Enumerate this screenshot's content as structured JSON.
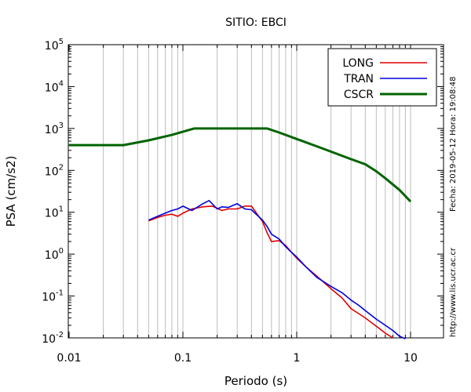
{
  "chart_data": {
    "type": "line",
    "title": "SITIO: EBCI",
    "xlabel": "Periodo (s)",
    "ylabel": "PSA (cm/s2)",
    "xscale": "log",
    "yscale": "log",
    "xlim": [
      0.01,
      20
    ],
    "ylim": [
      0.01,
      100000
    ],
    "x_tick_labels": [
      "0.01",
      "0.1",
      "1",
      "10"
    ],
    "y_tick_labels": [
      {
        "base": "10",
        "exp": "-2"
      },
      {
        "base": "10",
        "exp": "-1"
      },
      {
        "base": "10",
        "exp": "0"
      },
      {
        "base": "10",
        "exp": "1"
      },
      {
        "base": "10",
        "exp": "2"
      },
      {
        "base": "10",
        "exp": "3"
      },
      {
        "base": "10",
        "exp": "4"
      },
      {
        "base": "10",
        "exp": "5"
      }
    ],
    "grid": "vertical-minor",
    "legend_position": "top-right",
    "series": [
      {
        "name": "LONG",
        "color": "#e00000",
        "x": [
          0.05,
          0.06,
          0.07,
          0.08,
          0.09,
          0.1,
          0.12,
          0.15,
          0.18,
          0.2,
          0.22,
          0.25,
          0.3,
          0.35,
          0.4,
          0.45,
          0.5,
          0.55,
          0.6,
          0.7,
          0.8,
          0.9,
          1.0,
          1.2,
          1.5,
          2.0,
          2.5,
          3.0,
          3.5,
          4.0,
          5.0,
          6.0,
          7.0
        ],
        "values": [
          6.2,
          7.5,
          8.5,
          9.0,
          8.0,
          9.5,
          12,
          13.5,
          14,
          12.5,
          11,
          12,
          12,
          14,
          14,
          9,
          6,
          3.2,
          2.0,
          2.1,
          1.6,
          1.1,
          0.8,
          0.5,
          0.3,
          0.15,
          0.09,
          0.05,
          0.038,
          0.03,
          0.019,
          0.013,
          0.01
        ]
      },
      {
        "name": "TRAN",
        "color": "#0000e0",
        "x": [
          0.05,
          0.06,
          0.07,
          0.08,
          0.09,
          0.1,
          0.12,
          0.15,
          0.17,
          0.2,
          0.22,
          0.25,
          0.3,
          0.35,
          0.4,
          0.45,
          0.5,
          0.55,
          0.6,
          0.7,
          0.8,
          0.9,
          1.0,
          1.2,
          1.5,
          2.0,
          2.5,
          3.0,
          3.5,
          4.0,
          5.0,
          6.0,
          7.0,
          8.0,
          9.0
        ],
        "values": [
          6.5,
          8,
          9.5,
          11,
          12,
          14,
          11,
          16,
          19,
          12,
          13.5,
          13,
          16,
          12,
          11.5,
          8.5,
          6.5,
          4.5,
          3,
          2.3,
          1.5,
          1.1,
          0.85,
          0.5,
          0.28,
          0.17,
          0.12,
          0.08,
          0.06,
          0.045,
          0.028,
          0.02,
          0.015,
          0.011,
          0.0095
        ]
      },
      {
        "name": "CSCR",
        "color": "#006400",
        "x": [
          0.01,
          0.03,
          0.05,
          0.08,
          0.125,
          0.2,
          0.3,
          0.4,
          0.55,
          0.7,
          1.0,
          1.5,
          2.0,
          3.0,
          4.0,
          5.0,
          6.0,
          8.0,
          10.0
        ],
        "values": [
          400,
          400,
          520,
          700,
          1000,
          1000,
          1000,
          1000,
          1000,
          800,
          560,
          375,
          280,
          185,
          140,
          95,
          65,
          34,
          18
        ]
      }
    ]
  },
  "side_note": {
    "timestamp": "Fecha: 2019-05-12  Hora: 19:08:48",
    "url": "http://www.lis.ucr.ac.cr"
  }
}
